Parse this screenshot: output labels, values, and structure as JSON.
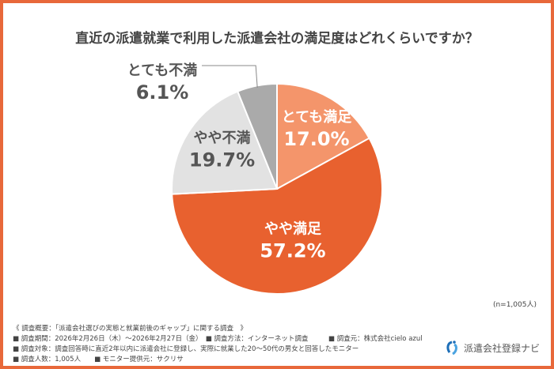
{
  "chart_data": {
    "type": "pie",
    "title": "直近の派遣就業で利用した派遣会社の満足度はどれくらいですか？",
    "slices": [
      {
        "label": "とても満足",
        "value": 17.0,
        "display": "17.0%",
        "color": "#F4956B",
        "text_color": "#ffffff"
      },
      {
        "label": "やや満足",
        "value": 57.2,
        "display": "57.2%",
        "color": "#E8612F",
        "text_color": "#ffffff"
      },
      {
        "label": "やや不満",
        "value": 19.7,
        "display": "19.7%",
        "color": "#E2E2E2",
        "text_color": "#555555"
      },
      {
        "label": "とても不満",
        "value": 6.1,
        "display": "6.1%",
        "color": "#AAAAAA",
        "text_color": "#555555"
      }
    ],
    "sample": "(n=1,005人)"
  },
  "notes": [
    "《 調査概要：「派遣会社選びの実態と就業前後のギャップ」に関する調査　》",
    "■ 調査期間：2026年2月26日（木）～2026年2月27日（金）　■ 調査方法：インターネット調査　　　■ 調査元：株式会社cielo azul",
    "■ 調査対象：調査回答時に直近2年以内に派遣会社に登録し、実際に就業した20～50代の男女と回答したモニター",
    "■ 調査人数：1,005人　　■ モニター提供元：サクリサ"
  ],
  "logo": {
    "text": "派遣会社登録ナビ",
    "color": "#1E6FB8"
  }
}
